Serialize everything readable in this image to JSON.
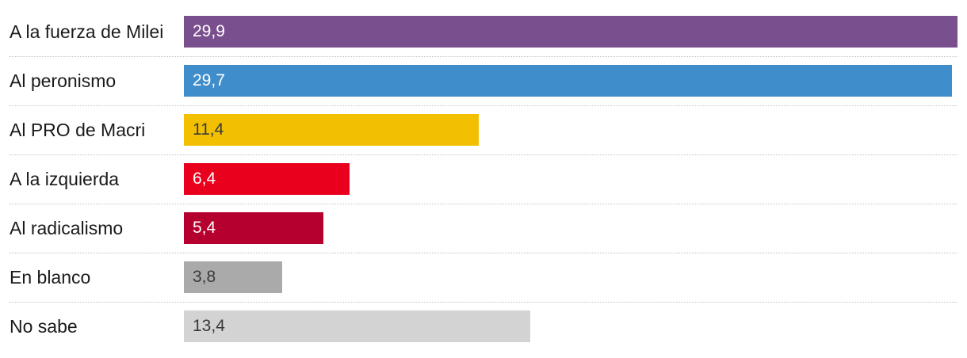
{
  "chart_data": {
    "type": "bar",
    "orientation": "horizontal",
    "categories": [
      "A la fuerza de Milei",
      "Al peronismo",
      "Al PRO de Macri",
      "A la izquierda",
      "Al radicalismo",
      "En blanco",
      "No sabe"
    ],
    "values": [
      29.9,
      29.7,
      11.4,
      6.4,
      5.4,
      3.8,
      13.4
    ],
    "value_labels": [
      "29,9",
      "29,7",
      "11,4",
      "6,4",
      "5,4",
      "3,8",
      "13,4"
    ],
    "colors": [
      "#7a4f8e",
      "#3f8ecb",
      "#f2c000",
      "#e8001c",
      "#b5002f",
      "#aaaaaa",
      "#d3d3d3"
    ],
    "label_colors": [
      "#ffffff",
      "#ffffff",
      "#3a3a3a",
      "#ffffff",
      "#ffffff",
      "#3a3a3a",
      "#3a3a3a"
    ],
    "xlim": [
      0,
      29.9
    ],
    "grid": false
  }
}
